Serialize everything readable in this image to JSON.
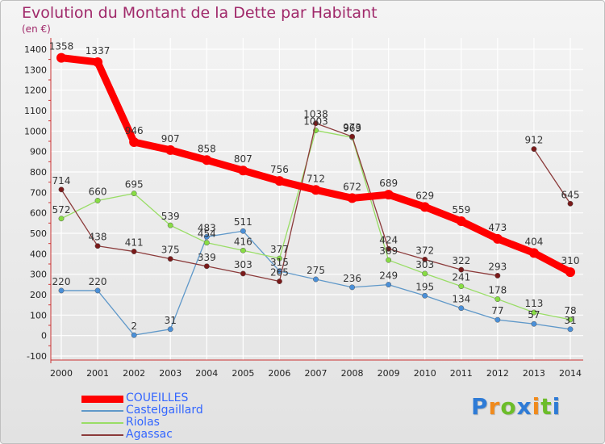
{
  "title": "Evolution du Montant de la Dette par Habitant",
  "unit_label": "(en €)",
  "brand": {
    "text": "Proxiti",
    "letter_colors": [
      "#2e7bd6",
      "#f08a1c",
      "#6cbd2a",
      "#2e7bd6",
      "#f08a1c",
      "#6cbd2a",
      "#2e7bd6"
    ]
  },
  "colors": {
    "title": "#a0296a",
    "axis": "#555555",
    "grid": "#ffffff"
  },
  "chart_data": {
    "type": "line",
    "x": [
      "2000",
      "2001",
      "2002",
      "2003",
      "2004",
      "2005",
      "2006",
      "2007",
      "2008",
      "2009",
      "2010",
      "2011",
      "2012",
      "2013",
      "2014"
    ],
    "ylim": [
      -100,
      1400
    ],
    "yticks": [
      -100,
      0,
      100,
      200,
      300,
      400,
      500,
      600,
      700,
      800,
      900,
      1000,
      1100,
      1200,
      1300,
      1400
    ],
    "grid": true,
    "legend_position": "bottom-left",
    "series": [
      {
        "name": "COUEILLES",
        "color": "#ff0000",
        "marker_color": "#ff0000",
        "legend_text_color": "#3366ff",
        "thick": true,
        "values": [
          1358,
          1337,
          946,
          907,
          858,
          807,
          756,
          712,
          672,
          689,
          629,
          559,
          473,
          404,
          310
        ],
        "labels": [
          "1358",
          "1337",
          "946",
          "907",
          "858",
          "807",
          "756",
          "712",
          "672",
          "689",
          "629",
          "559",
          "473",
          "404",
          "310"
        ]
      },
      {
        "name": "Castelgaillard",
        "color": "#5f98c9",
        "marker_color": "#4a90d9",
        "legend_text_color": "#3366ff",
        "thick": false,
        "values": [
          220,
          220,
          2,
          31,
          483,
          511,
          315,
          275,
          236,
          249,
          195,
          134,
          77,
          57,
          31
        ],
        "labels": [
          "220",
          "220",
          "2",
          "31",
          "483",
          "511",
          "315",
          "275",
          "236",
          "249",
          "195",
          "134",
          "77",
          "57",
          "31"
        ]
      },
      {
        "name": "Riolas",
        "color": "#99dd66",
        "marker_color": "#88dd44",
        "legend_text_color": "#3366ff",
        "thick": false,
        "values": [
          572,
          660,
          695,
          539,
          454,
          416,
          377,
          1003,
          969,
          369,
          303,
          241,
          178,
          113,
          78
        ],
        "labels": [
          "572",
          "660",
          "695",
          "539",
          "454",
          "416",
          "377",
          "1003",
          "969",
          "369",
          "303",
          "241",
          "178",
          "113",
          "78"
        ]
      },
      {
        "name": "Agassac",
        "color": "#8b3a3a",
        "marker_color": "#7a1a1a",
        "legend_text_color": "#3366ff",
        "thick": false,
        "values": [
          714,
          438,
          411,
          375,
          339,
          303,
          265,
          1038,
          973,
          424,
          372,
          322,
          293,
          912,
          645
        ],
        "labels": [
          "714",
          "438",
          "411",
          "375",
          "339",
          "303",
          "265",
          "1038",
          "973",
          "424",
          "372",
          "322",
          "293",
          "912",
          "645"
        ],
        "gaps_after": [
          12
        ]
      }
    ]
  }
}
